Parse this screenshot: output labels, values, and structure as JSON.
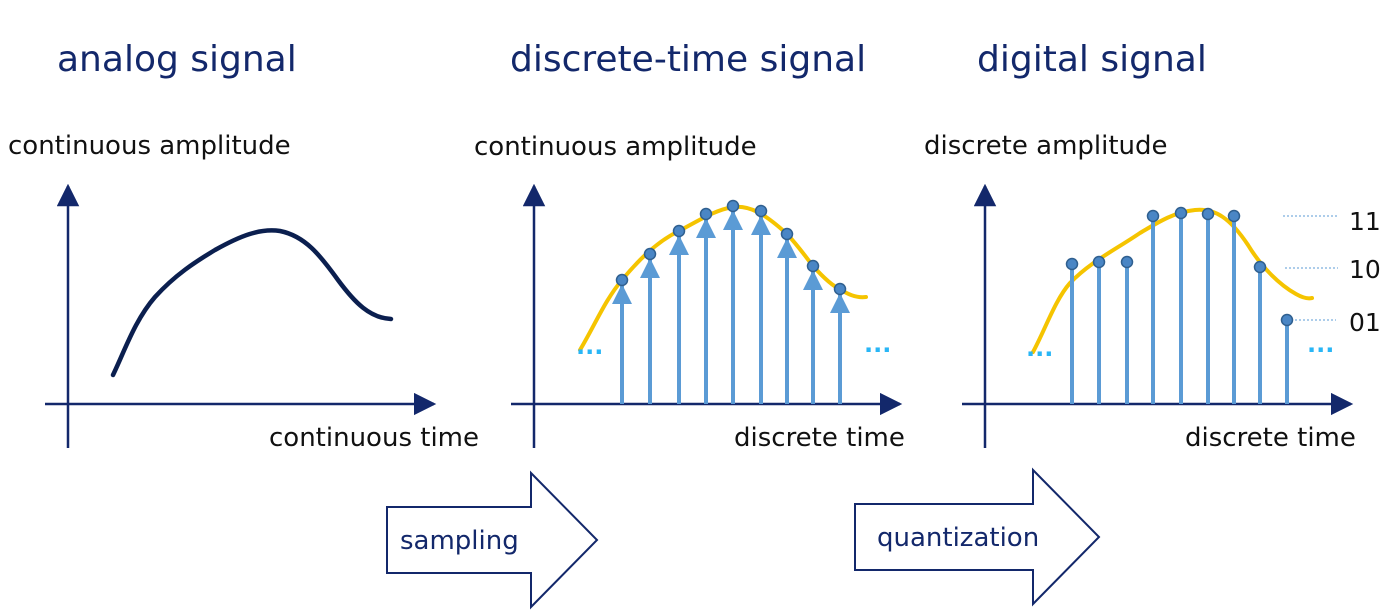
{
  "panels": [
    {
      "title": "analog signal",
      "ylabel": "continuous amplitude",
      "xlabel": "continuous time"
    },
    {
      "title": "discrete-time signal",
      "ylabel": "continuous amplitude",
      "xlabel": "discrete time",
      "ellipsis": "..."
    },
    {
      "title": "digital signal",
      "ylabel": "discrete amplitude",
      "xlabel": "discrete time",
      "ellipsis": "...",
      "levels": [
        "11",
        "10",
        "01"
      ]
    }
  ],
  "steps": [
    {
      "label": "sampling"
    },
    {
      "label": "quantization"
    }
  ],
  "colors": {
    "title": "#13286b",
    "axis": "#13286b",
    "analog_curve": "#0b1f4f",
    "sampled_curve": "#f5c400",
    "stems": "#5b9bd5",
    "dots": "#4a86c5",
    "ellipsis": "#29b6f6",
    "level_guides": "#5b9bd5"
  }
}
